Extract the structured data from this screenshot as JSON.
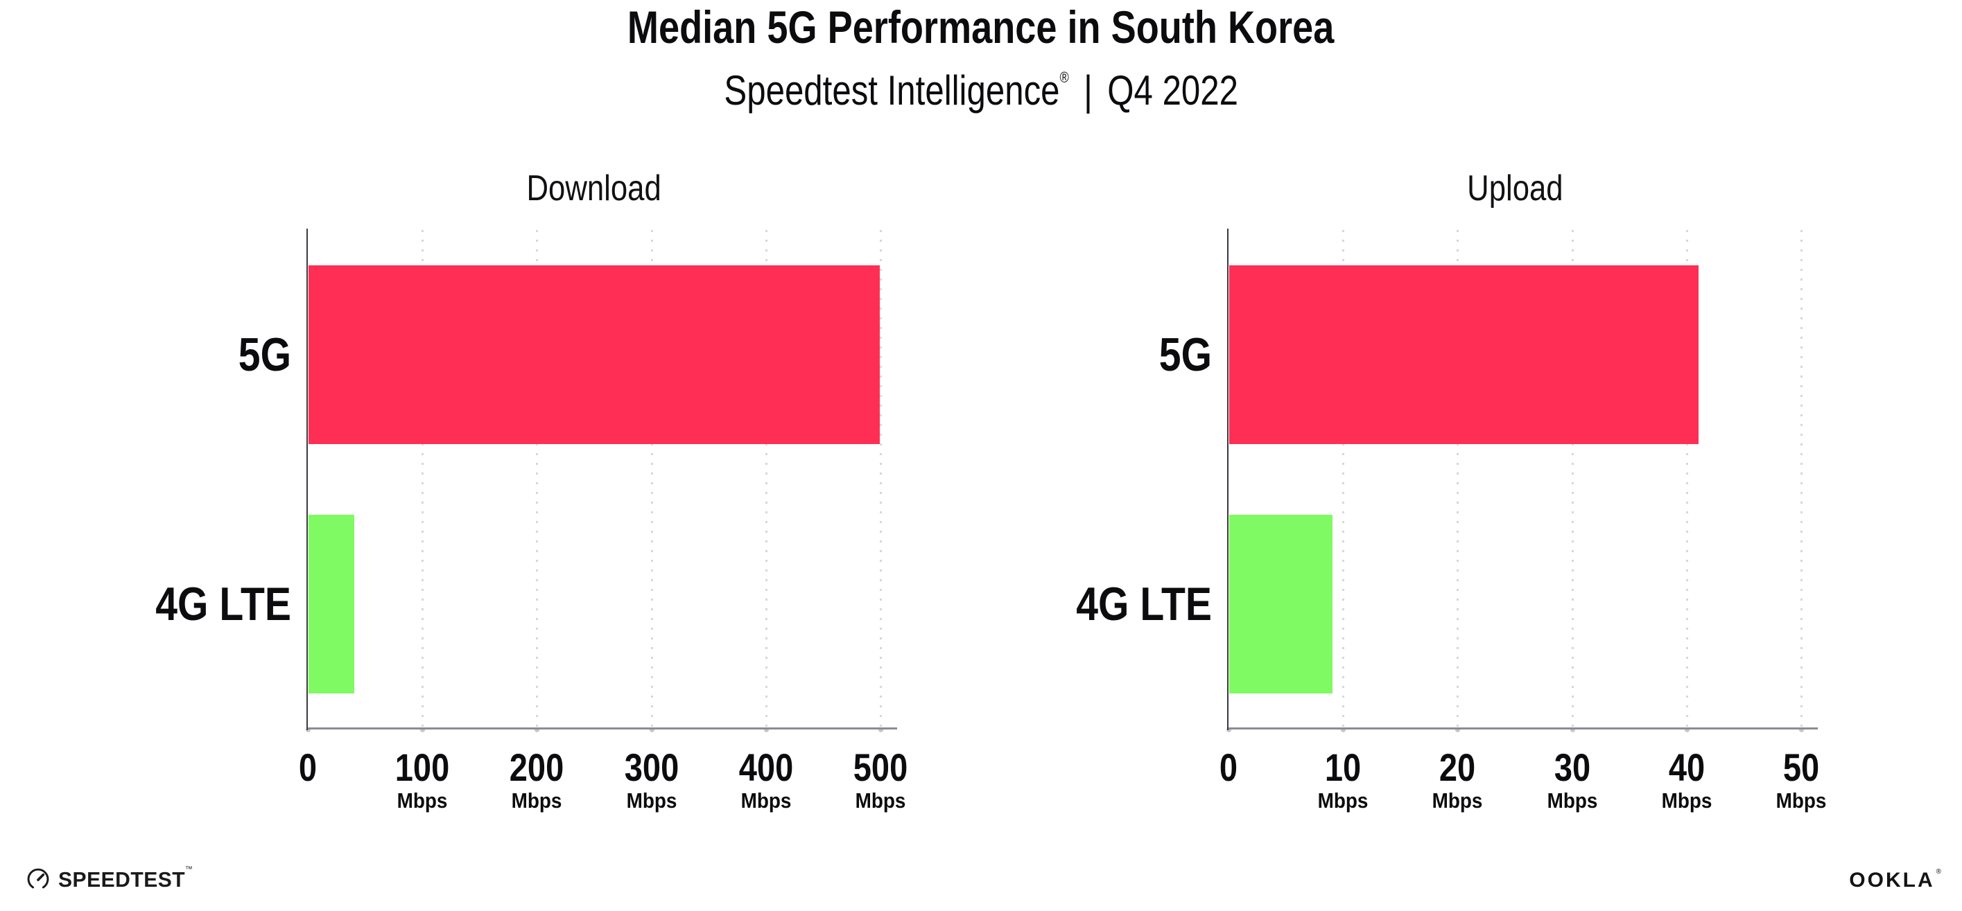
{
  "header": {
    "title": "Median 5G Performance in South Korea",
    "subtitle_brand": "Speedtest Intelligence",
    "subtitle_reg": "®",
    "subtitle_separator": "|",
    "subtitle_period": "Q4 2022"
  },
  "chart_data": [
    {
      "type": "bar",
      "orientation": "horizontal",
      "title": "Download",
      "categories": [
        "5G",
        "4G LTE"
      ],
      "values": [
        499,
        40
      ],
      "unit": "Mbps",
      "xlim": [
        0,
        500
      ],
      "xticks": [
        0,
        100,
        200,
        300,
        400,
        500
      ],
      "bar_colors": [
        "#ff2e55",
        "#80fa62"
      ],
      "grid": "dotted-vertical",
      "legend": "none"
    },
    {
      "type": "bar",
      "orientation": "horizontal",
      "title": "Upload",
      "categories": [
        "5G",
        "4G LTE"
      ],
      "values": [
        41,
        9
      ],
      "unit": "Mbps",
      "xlim": [
        0,
        50
      ],
      "xticks": [
        0,
        10,
        20,
        30,
        40,
        50
      ],
      "bar_colors": [
        "#ff2e55",
        "#80fa62"
      ],
      "grid": "dotted-vertical",
      "legend": "none"
    }
  ],
  "colors": {
    "bar_5g": "#ff2e55",
    "bar_4g_lte": "#80fa62",
    "x_axis_line": "#8b8b93",
    "y_axis_line": "#3a3a42",
    "gridline_dots": "#babaca",
    "text": "#0c0c0f"
  },
  "footer": {
    "speedtest_label": "SPEEDTEST",
    "speedtest_tm": "™",
    "ookla_label": "OOKLA",
    "ookla_reg": "®"
  }
}
